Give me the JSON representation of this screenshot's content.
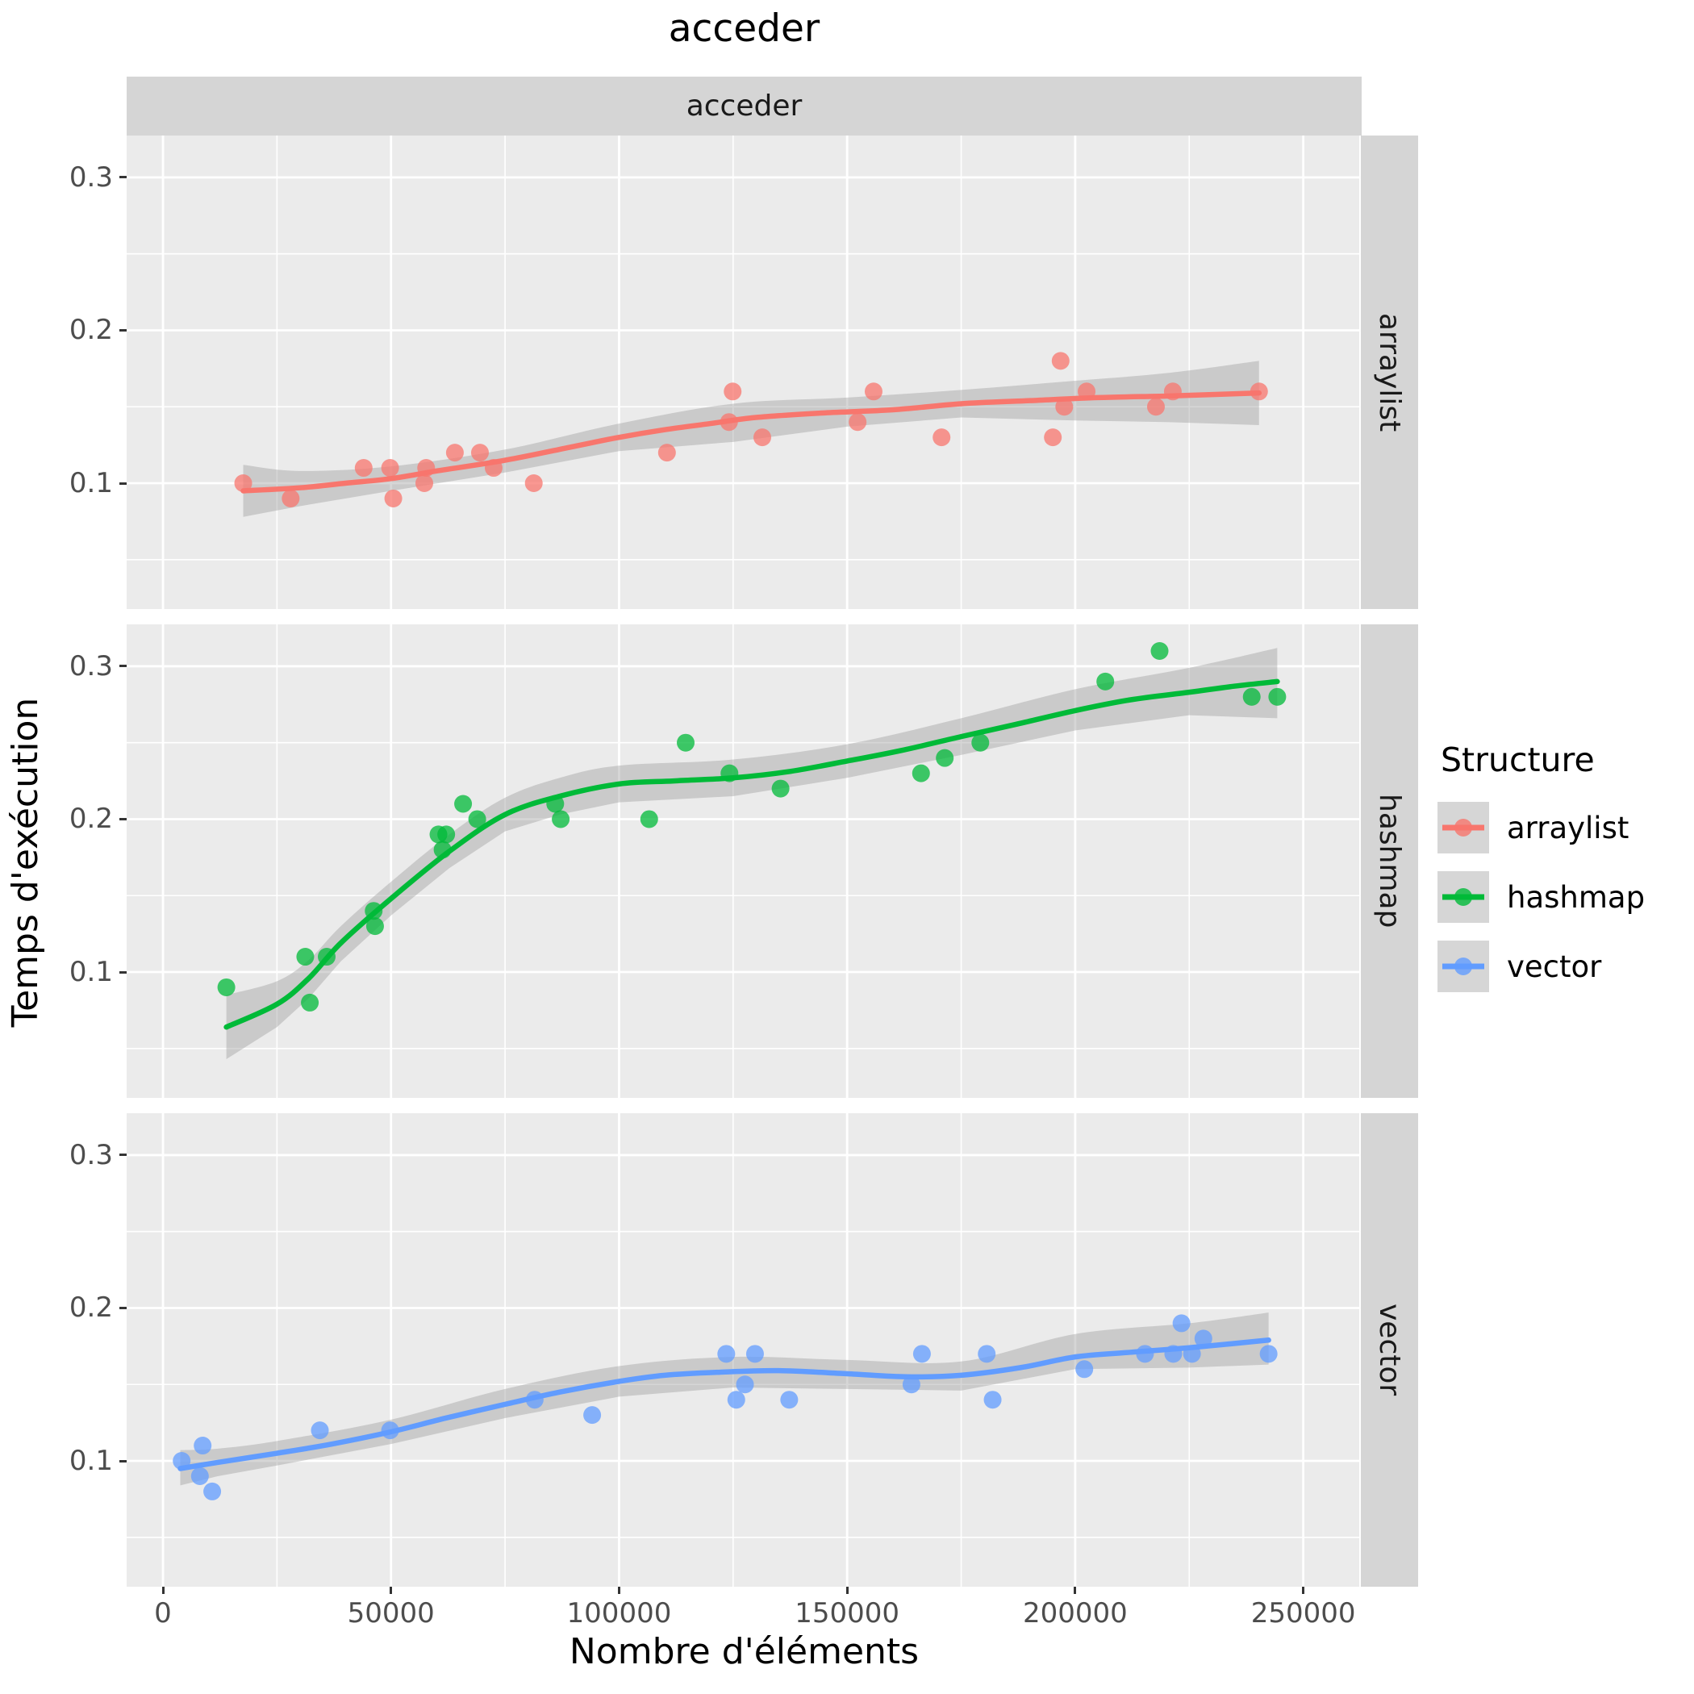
{
  "title": "acceder",
  "facet_strip": "acceder",
  "legend": {
    "title": "Structure",
    "items": [
      {
        "label": "arraylist",
        "color": "#F8766D"
      },
      {
        "label": "hashmap",
        "color": "#00BA38"
      },
      {
        "label": "vector",
        "color": "#619CFF"
      }
    ]
  },
  "style": {
    "panel_bg": "#EBEBEB",
    "strip_bg": "#D5D5D5",
    "grid_color": "#FFFFFF",
    "ribbon_color": "rgba(153,153,153,0.4)",
    "tick_text_color": "#4D4D4D"
  },
  "chart_data": {
    "type": "scatter",
    "title": "acceder",
    "facet_column_label": "acceder",
    "facet_rows": [
      "arraylist",
      "hashmap",
      "vector"
    ],
    "xlabel": "Nombre d'éléments",
    "ylabel": "Temps d'exécution",
    "x_ticks": [
      0,
      50000,
      100000,
      150000,
      200000,
      250000
    ],
    "y_ticks": [
      0.1,
      0.2,
      0.3
    ],
    "x_minor": [
      25000,
      75000,
      125000,
      175000,
      225000
    ],
    "y_minor": [
      0.05,
      0.15,
      0.25
    ],
    "xlim": [
      -7960,
      262270
    ],
    "ylim": [
      0.0177,
      0.3274
    ],
    "grid": true,
    "legend_position": "right",
    "smoothing": "loess with confidence ribbon",
    "facets": [
      {
        "name": "arraylist",
        "color": "#F8766D",
        "points": [
          [
            17600,
            0.1
          ],
          [
            28000,
            0.09
          ],
          [
            44000,
            0.11
          ],
          [
            49800,
            0.11
          ],
          [
            50500,
            0.09
          ],
          [
            57300,
            0.1
          ],
          [
            57700,
            0.11
          ],
          [
            64000,
            0.12
          ],
          [
            69500,
            0.12
          ],
          [
            72500,
            0.11
          ],
          [
            81300,
            0.1
          ],
          [
            110500,
            0.12
          ],
          [
            124100,
            0.14
          ],
          [
            124900,
            0.16
          ],
          [
            131400,
            0.13
          ],
          [
            152300,
            0.14
          ],
          [
            155800,
            0.16
          ],
          [
            170700,
            0.13
          ],
          [
            195100,
            0.13
          ],
          [
            196800,
            0.18
          ],
          [
            197600,
            0.15
          ],
          [
            202500,
            0.16
          ],
          [
            217700,
            0.15
          ],
          [
            221400,
            0.16
          ],
          [
            240300,
            0.16
          ]
        ],
        "smooth": [
          [
            17600,
            0.095
          ],
          [
            30000,
            0.097
          ],
          [
            40000,
            0.1
          ],
          [
            50000,
            0.103
          ],
          [
            60000,
            0.108
          ],
          [
            75000,
            0.115
          ],
          [
            90000,
            0.124
          ],
          [
            100000,
            0.13
          ],
          [
            110000,
            0.135
          ],
          [
            120000,
            0.139
          ],
          [
            130000,
            0.143
          ],
          [
            145000,
            0.146
          ],
          [
            160000,
            0.148
          ],
          [
            175000,
            0.152
          ],
          [
            190000,
            0.154
          ],
          [
            205000,
            0.156
          ],
          [
            220000,
            0.157
          ],
          [
            230000,
            0.158
          ],
          [
            240300,
            0.159
          ]
        ],
        "ribbon": [
          [
            17600,
            0.078,
            0.112
          ],
          [
            30000,
            0.085,
            0.108
          ],
          [
            50000,
            0.095,
            0.111
          ],
          [
            75000,
            0.107,
            0.122
          ],
          [
            100000,
            0.121,
            0.139
          ],
          [
            125000,
            0.127,
            0.152
          ],
          [
            150000,
            0.137,
            0.156
          ],
          [
            175000,
            0.143,
            0.161
          ],
          [
            200000,
            0.141,
            0.167
          ],
          [
            220000,
            0.14,
            0.172
          ],
          [
            240300,
            0.138,
            0.18
          ]
        ]
      },
      {
        "name": "hashmap",
        "color": "#00BA38",
        "points": [
          [
            13900,
            0.09
          ],
          [
            31200,
            0.11
          ],
          [
            32200,
            0.08
          ],
          [
            35900,
            0.11
          ],
          [
            46200,
            0.14
          ],
          [
            46500,
            0.13
          ],
          [
            60400,
            0.19
          ],
          [
            61300,
            0.18
          ],
          [
            62100,
            0.19
          ],
          [
            65800,
            0.21
          ],
          [
            68900,
            0.2
          ],
          [
            86000,
            0.21
          ],
          [
            87200,
            0.2
          ],
          [
            106600,
            0.2
          ],
          [
            114600,
            0.25
          ],
          [
            124200,
            0.23
          ],
          [
            135400,
            0.22
          ],
          [
            166200,
            0.23
          ],
          [
            171400,
            0.24
          ],
          [
            179200,
            0.25
          ],
          [
            206600,
            0.29
          ],
          [
            218500,
            0.31
          ],
          [
            238700,
            0.28
          ],
          [
            244300,
            0.28
          ]
        ],
        "smooth": [
          [
            13900,
            0.064
          ],
          [
            25000,
            0.079
          ],
          [
            32000,
            0.096
          ],
          [
            39000,
            0.119
          ],
          [
            50000,
            0.148
          ],
          [
            62800,
            0.179
          ],
          [
            75000,
            0.203
          ],
          [
            87000,
            0.215
          ],
          [
            100000,
            0.223
          ],
          [
            112000,
            0.225
          ],
          [
            125000,
            0.227
          ],
          [
            137000,
            0.231
          ],
          [
            150000,
            0.238
          ],
          [
            162000,
            0.245
          ],
          [
            175000,
            0.254
          ],
          [
            187000,
            0.262
          ],
          [
            200000,
            0.271
          ],
          [
            212000,
            0.278
          ],
          [
            225000,
            0.283
          ],
          [
            235000,
            0.287
          ],
          [
            244300,
            0.29
          ]
        ],
        "ribbon": [
          [
            13900,
            0.043,
            0.085
          ],
          [
            25000,
            0.064,
            0.094
          ],
          [
            32000,
            0.083,
            0.108
          ],
          [
            39000,
            0.107,
            0.13
          ],
          [
            50000,
            0.137,
            0.159
          ],
          [
            62800,
            0.168,
            0.19
          ],
          [
            75000,
            0.192,
            0.214
          ],
          [
            87000,
            0.203,
            0.227
          ],
          [
            100000,
            0.211,
            0.235
          ],
          [
            125000,
            0.215,
            0.239
          ],
          [
            150000,
            0.227,
            0.249
          ],
          [
            175000,
            0.242,
            0.266
          ],
          [
            200000,
            0.258,
            0.285
          ],
          [
            225000,
            0.268,
            0.299
          ],
          [
            244300,
            0.266,
            0.312
          ]
        ]
      },
      {
        "name": "vector",
        "color": "#619CFF",
        "points": [
          [
            4100,
            0.1
          ],
          [
            8100,
            0.09
          ],
          [
            8700,
            0.11
          ],
          [
            10800,
            0.08
          ],
          [
            34400,
            0.12
          ],
          [
            49800,
            0.12
          ],
          [
            81500,
            0.14
          ],
          [
            94100,
            0.13
          ],
          [
            123500,
            0.17
          ],
          [
            125700,
            0.14
          ],
          [
            127600,
            0.15
          ],
          [
            129800,
            0.17
          ],
          [
            137300,
            0.14
          ],
          [
            164100,
            0.15
          ],
          [
            166400,
            0.17
          ],
          [
            180600,
            0.17
          ],
          [
            181900,
            0.14
          ],
          [
            202000,
            0.16
          ],
          [
            215300,
            0.17
          ],
          [
            221500,
            0.17
          ],
          [
            223300,
            0.19
          ],
          [
            225600,
            0.17
          ],
          [
            228100,
            0.18
          ],
          [
            242400,
            0.17
          ]
        ],
        "smooth": [
          [
            3800,
            0.095
          ],
          [
            12000,
            0.099
          ],
          [
            25000,
            0.105
          ],
          [
            37000,
            0.111
          ],
          [
            50000,
            0.119
          ],
          [
            62000,
            0.128
          ],
          [
            75000,
            0.137
          ],
          [
            87000,
            0.145
          ],
          [
            100000,
            0.152
          ],
          [
            110000,
            0.156
          ],
          [
            122000,
            0.158
          ],
          [
            135000,
            0.159
          ],
          [
            150000,
            0.157
          ],
          [
            163000,
            0.155
          ],
          [
            175000,
            0.156
          ],
          [
            188000,
            0.161
          ],
          [
            200000,
            0.168
          ],
          [
            212000,
            0.171
          ],
          [
            225000,
            0.174
          ],
          [
            242400,
            0.179
          ]
        ],
        "ribbon": [
          [
            3800,
            0.084,
            0.107
          ],
          [
            12000,
            0.09,
            0.108
          ],
          [
            25000,
            0.097,
            0.113
          ],
          [
            50000,
            0.111,
            0.127
          ],
          [
            75000,
            0.128,
            0.147
          ],
          [
            100000,
            0.142,
            0.162
          ],
          [
            125000,
            0.148,
            0.168
          ],
          [
            150000,
            0.147,
            0.166
          ],
          [
            175000,
            0.146,
            0.165
          ],
          [
            200000,
            0.16,
            0.183
          ],
          [
            225000,
            0.161,
            0.19
          ],
          [
            242400,
            0.163,
            0.197
          ]
        ]
      }
    ]
  }
}
